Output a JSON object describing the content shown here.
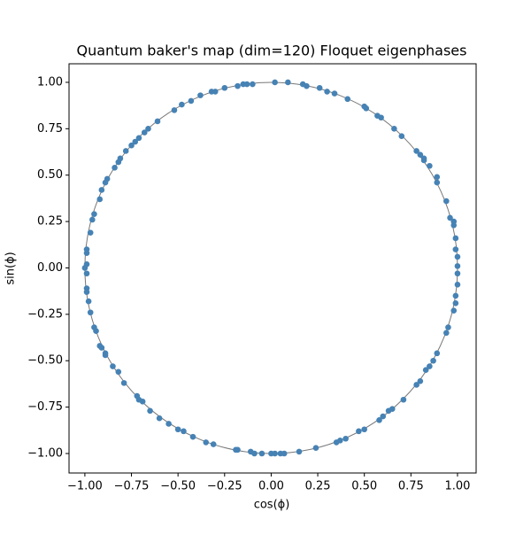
{
  "chart_data": {
    "type": "scatter",
    "title": "Quantum baker's map (dim=120) Floquet eigenphases",
    "x_label": "cos(ϕ)",
    "y_label": "sin(ϕ)",
    "color": "#4682b4",
    "xlim": [
      -1.085,
      1.1
    ],
    "ylim": [
      -1.105,
      1.1
    ],
    "xticks": [
      {
        "value": -1,
        "label": "−1.00"
      },
      {
        "value": -0.75,
        "label": "−0.75"
      },
      {
        "value": -0.5,
        "label": "−0.50"
      },
      {
        "value": -0.25,
        "label": "−0.25"
      },
      {
        "value": 0,
        "label": "0.00"
      },
      {
        "value": 0.25,
        "label": "0.25"
      },
      {
        "value": 0.5,
        "label": "0.50"
      },
      {
        "value": 0.75,
        "label": "0.75"
      },
      {
        "value": 1,
        "label": "1.00"
      }
    ],
    "yticks": [
      {
        "value": -1,
        "label": "−1.00"
      },
      {
        "value": -0.75,
        "label": "−0.75"
      },
      {
        "value": -0.5,
        "label": "−0.50"
      },
      {
        "value": -0.25,
        "label": "−0.25"
      },
      {
        "value": 0,
        "label": "0.00"
      },
      {
        "value": 0.25,
        "label": "0.25"
      },
      {
        "value": 0.5,
        "label": "0.50"
      },
      {
        "value": 0.75,
        "label": "0.75"
      },
      {
        "value": 1,
        "label": "1.00"
      }
    ],
    "x": [
      0.02,
      -0.1,
      -0.13,
      -0.15,
      -0.18,
      -0.25,
      -0.3,
      -0.32,
      -0.38,
      -0.43,
      -0.48,
      -0.52,
      -0.61,
      -0.66,
      -0.68,
      -0.71,
      -0.73,
      -0.75,
      -0.78,
      -0.81,
      -0.82,
      -0.84,
      -0.88,
      -0.89,
      -0.91,
      -0.92,
      -0.95,
      -0.96,
      -0.97,
      -0.99,
      -0.99,
      -0.99,
      -1.0,
      -0.99,
      -0.99,
      -0.99,
      -0.98,
      -0.97,
      -0.95,
      -0.94,
      -0.92,
      -0.91,
      -0.89,
      -0.89,
      -0.85,
      -0.82,
      -0.79,
      -0.72,
      -0.71,
      -0.69,
      -0.65,
      -0.6,
      -0.55,
      -0.5,
      -0.47,
      -0.42,
      -0.35,
      -0.31,
      -0.19,
      -0.18,
      -0.11,
      -0.09,
      -0.05,
      0.0,
      0.02,
      0.05,
      0.07,
      0.15,
      0.24,
      0.35,
      0.37,
      0.4,
      0.47,
      0.5,
      0.58,
      0.6,
      0.63,
      0.65,
      0.71,
      0.78,
      0.8,
      0.83,
      0.85,
      0.87,
      0.89,
      0.94,
      0.95,
      0.98,
      0.99,
      0.99,
      1.0,
      1.0,
      1.0,
      1.0,
      0.99,
      0.99,
      0.98,
      0.98,
      0.96,
      0.94,
      0.89,
      0.89,
      0.85,
      0.82,
      0.82,
      0.8,
      0.78,
      0.7,
      0.66,
      0.59,
      0.57,
      0.51,
      0.5,
      0.41,
      0.34,
      0.3,
      0.26,
      0.19,
      0.17,
      0.09
    ],
    "values": [
      1.0,
      0.99,
      0.99,
      0.99,
      0.98,
      0.97,
      0.95,
      0.95,
      0.93,
      0.9,
      0.88,
      0.85,
      0.79,
      0.75,
      0.73,
      0.7,
      0.68,
      0.66,
      0.63,
      0.59,
      0.57,
      0.54,
      0.48,
      0.46,
      0.42,
      0.37,
      0.29,
      0.26,
      0.19,
      0.1,
      0.08,
      0.02,
      0.0,
      -0.03,
      -0.11,
      -0.13,
      -0.18,
      -0.24,
      -0.32,
      -0.34,
      -0.42,
      -0.43,
      -0.46,
      -0.47,
      -0.53,
      -0.56,
      -0.62,
      -0.69,
      -0.71,
      -0.72,
      -0.77,
      -0.81,
      -0.84,
      -0.87,
      -0.88,
      -0.91,
      -0.94,
      -0.95,
      -0.98,
      -0.98,
      -0.99,
      -1.0,
      -1.0,
      -1.0,
      -1.0,
      -1.0,
      -1.0,
      -0.99,
      -0.97,
      -0.94,
      -0.93,
      -0.92,
      -0.88,
      -0.87,
      -0.82,
      -0.8,
      -0.77,
      -0.76,
      -0.71,
      -0.63,
      -0.61,
      -0.55,
      -0.53,
      -0.5,
      -0.46,
      -0.35,
      -0.32,
      -0.23,
      -0.19,
      -0.15,
      -0.09,
      -0.03,
      0.01,
      0.06,
      0.1,
      0.16,
      0.23,
      0.25,
      0.27,
      0.36,
      0.46,
      0.49,
      0.55,
      0.58,
      0.59,
      0.61,
      0.63,
      0.71,
      0.75,
      0.81,
      0.82,
      0.86,
      0.87,
      0.91,
      0.94,
      0.95,
      0.97,
      0.98,
      0.99,
      1.0
    ]
  }
}
